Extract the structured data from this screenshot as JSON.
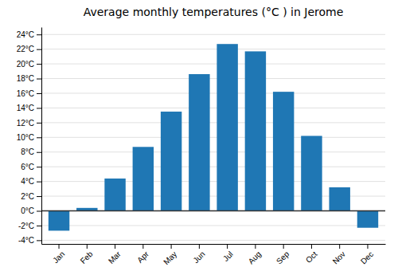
{
  "chart_data": {
    "type": "bar",
    "title": "Average monthly temperatures (°C ) in Jerome",
    "categories": [
      "Jan",
      "Feb",
      "Mar",
      "Apr",
      "May",
      "Jun",
      "Jul",
      "Aug",
      "Sep",
      "Oct",
      "Nov",
      "Dec"
    ],
    "values": [
      -2.7,
      0.4,
      4.4,
      8.7,
      13.5,
      18.6,
      22.7,
      21.7,
      16.2,
      10.2,
      3.2,
      -2.3
    ],
    "ylim": [
      -4.5,
      25
    ],
    "yticks": [
      {
        "value": -4,
        "label": "-4°C"
      },
      {
        "value": -2,
        "label": "-2°C"
      },
      {
        "value": 0,
        "label": "0°C"
      },
      {
        "value": 2,
        "label": "2°C"
      },
      {
        "value": 4,
        "label": "4°C"
      },
      {
        "value": 6,
        "label": "6°C"
      },
      {
        "value": 8,
        "label": "8°C"
      },
      {
        "value": 10,
        "label": "10°C"
      },
      {
        "value": 12,
        "label": "12°C"
      },
      {
        "value": 14,
        "label": "14°C"
      },
      {
        "value": 16,
        "label": "16°C"
      },
      {
        "value": 18,
        "label": "18°C"
      },
      {
        "value": 20,
        "label": "20°C"
      },
      {
        "value": 22,
        "label": "22°C"
      },
      {
        "value": 24,
        "label": "24°C"
      }
    ],
    "grid": true
  }
}
